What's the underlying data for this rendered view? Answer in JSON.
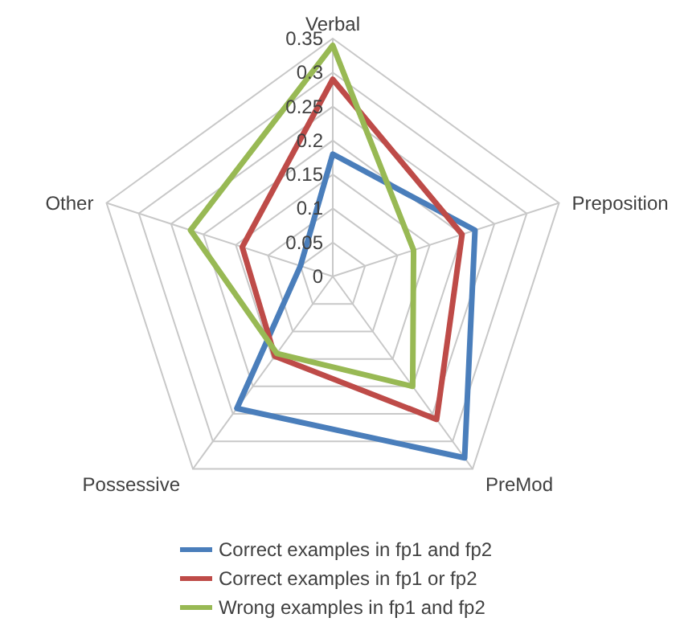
{
  "chart_data": {
    "type": "radar",
    "categories": [
      "Verbal",
      "Preposition",
      "PreMod",
      "Possessive",
      "Other"
    ],
    "series": [
      {
        "name": "Correct examples in fp1 and fp2",
        "color": "#4a7ebb",
        "values": [
          0.18,
          0.22,
          0.33,
          0.24,
          0.05
        ]
      },
      {
        "name": "Correct examples in fp1 or fp2",
        "color": "#be4b48",
        "values": [
          0.29,
          0.2,
          0.26,
          0.145,
          0.14
        ]
      },
      {
        "name": "Wrong examples in fp1 and fp2",
        "color": "#98b954",
        "values": [
          0.34,
          0.125,
          0.2,
          0.14,
          0.22
        ]
      }
    ],
    "ylim": [
      0,
      0.35
    ],
    "yticks": [
      0,
      0.05,
      0.1,
      0.15,
      0.2,
      0.25,
      0.3,
      0.35
    ],
    "grid": true,
    "legend": "bottom"
  }
}
